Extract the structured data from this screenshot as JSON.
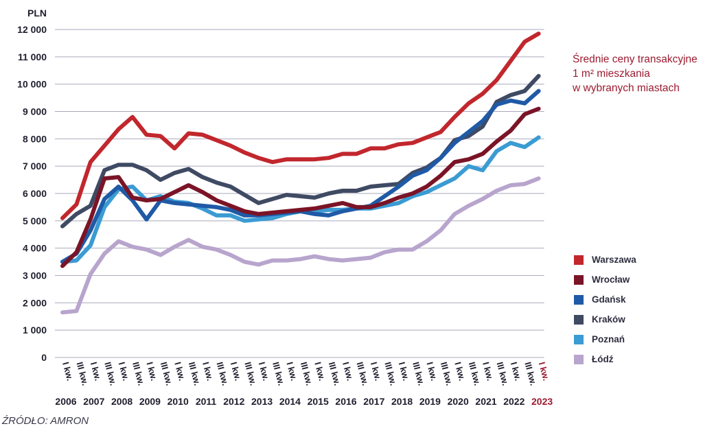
{
  "chart_data": {
    "type": "line",
    "title": [
      "Średnie ceny transakcyjne",
      "1 m² mieszkania",
      "w wybranych miastach"
    ],
    "ylabel": "PLN",
    "ylim": [
      0,
      12000
    ],
    "yticks": [
      {
        "value": 0,
        "label": "0"
      },
      {
        "value": 1000,
        "label": "1 000"
      },
      {
        "value": 2000,
        "label": "2 000"
      },
      {
        "value": 3000,
        "label": "3 000"
      },
      {
        "value": 4000,
        "label": "4 000"
      },
      {
        "value": 5000,
        "label": "5 000"
      },
      {
        "value": 6000,
        "label": "6 000"
      },
      {
        "value": 7000,
        "label": "7 000"
      },
      {
        "value": 8000,
        "label": "8 000"
      },
      {
        "value": 9000,
        "label": "9 000"
      },
      {
        "value": 10000,
        "label": "10 000"
      },
      {
        "value": 11000,
        "label": "11 000"
      },
      {
        "value": 12000,
        "label": "12 000"
      }
    ],
    "x": [
      "I kw. 2006",
      "III kw. 2006",
      "I kw. 2007",
      "III kw. 2007",
      "I kw. 2008",
      "III kw. 2008",
      "I kw. 2009",
      "III kw. 2009",
      "I kw. 2010",
      "III kw. 2010",
      "I kw. 2011",
      "III kw. 2011",
      "I kw. 2012",
      "III kw. 2012",
      "I kw. 2013",
      "III kw. 2013",
      "I kw. 2014",
      "III kw. 2014",
      "I kw. 2015",
      "III kw. 2015",
      "I kw. 2016",
      "III kw. 2016",
      "I kw. 2017",
      "III kw. 2017",
      "I kw. 2018",
      "III kw. 2018",
      "I kw. 2019",
      "III kw. 2019",
      "I kw. 2020",
      "III kw. 2020",
      "I kw. 2021",
      "III kw. 2021",
      "I kw. 2022",
      "III kw. 2022",
      "I kw. 2023"
    ],
    "xtick_labels": [
      "I kw.",
      "III kw.",
      "I kw.",
      "III kw.",
      "I kw.",
      "III kw.",
      "I kw.",
      "III kw.",
      "I kw.",
      "III kw.",
      "I kw.",
      "III kw.",
      "I kw.",
      "III kw.",
      "I kw.",
      "III kw.",
      "I kw.",
      "III kw.",
      "I kw.",
      "III kw.",
      "I kw.",
      "III kw.",
      "I kw.",
      "III kw.",
      "I kw.",
      "III kw.",
      "I kw.",
      "III kw.",
      "I kw.",
      "III kw.",
      "I kw.",
      "III kw.",
      "I kw.",
      "III kw.",
      "I kw."
    ],
    "years": [
      "2006",
      "2007",
      "2008",
      "2009",
      "2010",
      "2011",
      "2012",
      "2013",
      "2014",
      "2015",
      "2016",
      "2017",
      "2018",
      "2019",
      "2020",
      "2021",
      "2022",
      "2023"
    ],
    "highlight_color": "#9b1b30",
    "grid": "horizontal",
    "legend": "right",
    "series": [
      {
        "name": "Warszawa",
        "color": "#c1272d",
        "values": [
          5100,
          5600,
          7150,
          7750,
          8350,
          8800,
          8150,
          8100,
          7650,
          8200,
          8150,
          7950,
          7750,
          7500,
          7300,
          7150,
          7250,
          7250,
          7250,
          7300,
          7450,
          7450,
          7650,
          7650,
          7800,
          7850,
          8050,
          8250,
          8800,
          9300,
          9650,
          10150,
          10850,
          11550,
          11850
        ]
      },
      {
        "name": "Wrocław",
        "color": "#7a1426",
        "values": [
          3350,
          3850,
          5050,
          6550,
          6600,
          5850,
          5750,
          5800,
          6050,
          6300,
          6050,
          5750,
          5550,
          5350,
          5250,
          5300,
          5350,
          5400,
          5450,
          5550,
          5650,
          5500,
          5500,
          5650,
          5850,
          6000,
          6250,
          6650,
          7150,
          7250,
          7450,
          7900,
          8300,
          8900,
          9100
        ]
      },
      {
        "name": "Gdańsk",
        "color": "#1f5aa6",
        "values": [
          3500,
          3800,
          4650,
          5800,
          6250,
          5750,
          5050,
          5750,
          5650,
          5600,
          5550,
          5500,
          5400,
          5200,
          5200,
          5250,
          5300,
          5350,
          5250,
          5200,
          5350,
          5450,
          5550,
          5900,
          6250,
          6650,
          6850,
          7300,
          7850,
          8250,
          8650,
          9250,
          9400,
          9300,
          9750
        ]
      },
      {
        "name": "Kraków",
        "color": "#3f4a63",
        "values": [
          4800,
          5250,
          5550,
          6850,
          7050,
          7050,
          6850,
          6500,
          6750,
          6900,
          6600,
          6400,
          6250,
          5950,
          5650,
          5800,
          5950,
          5900,
          5850,
          6000,
          6100,
          6100,
          6250,
          6300,
          6350,
          6750,
          6950,
          7300,
          7950,
          8100,
          8450,
          9350,
          9600,
          9750,
          10300
        ]
      },
      {
        "name": "Poznań",
        "color": "#3b9bd3",
        "values": [
          3500,
          3550,
          4100,
          5500,
          6150,
          6250,
          5750,
          5900,
          5700,
          5650,
          5450,
          5200,
          5200,
          5000,
          5050,
          5100,
          5250,
          5350,
          5350,
          5400,
          5400,
          5450,
          5450,
          5550,
          5650,
          5900,
          6050,
          6300,
          6550,
          7000,
          6850,
          7550,
          7850,
          7700,
          8050
        ]
      },
      {
        "name": "Łódź",
        "color": "#b8a5cd",
        "values": [
          1650,
          1700,
          3050,
          3800,
          4250,
          4050,
          3950,
          3750,
          4050,
          4300,
          4050,
          3950,
          3750,
          3500,
          3400,
          3550,
          3550,
          3600,
          3700,
          3600,
          3550,
          3600,
          3650,
          3850,
          3950,
          3950,
          4250,
          4650,
          5250,
          5550,
          5800,
          6100,
          6300,
          6350,
          6550
        ]
      }
    ]
  },
  "source": "ŹRÓDŁO: AMRON"
}
